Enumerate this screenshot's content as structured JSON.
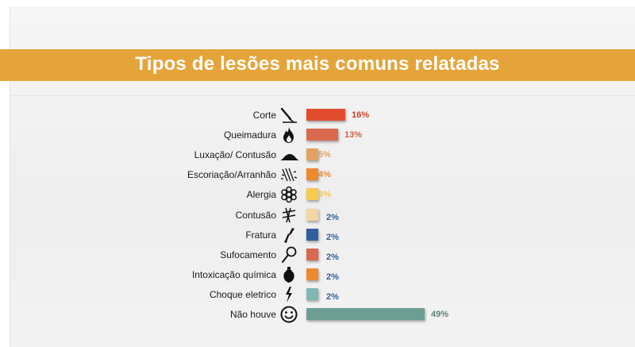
{
  "title": "Tipos de lesões mais comuns relatadas",
  "chart_data": {
    "type": "bar",
    "orientation": "horizontal",
    "title": "Tipos de lesões mais comuns relatadas",
    "categories": [
      "Corte",
      "Queimadura",
      "Luxação/ Contusão",
      "Escoriação/Arranhão",
      "Alergia",
      "Contusão",
      "Fratura",
      "Sufocamento",
      "Intoxicação química",
      "Choque eletrico",
      "Não houve"
    ],
    "values": [
      16,
      13,
      5,
      4,
      3,
      2,
      2,
      2,
      2,
      2,
      49
    ],
    "value_labels": [
      "16%",
      "13%",
      "5%",
      "4%",
      "3%",
      "2%",
      "2%",
      "2%",
      "2%",
      "2%",
      "49%"
    ],
    "unit": "%",
    "xlim": [
      0,
      49
    ],
    "colors": [
      "#e24c2f",
      "#d9694f",
      "#e0a263",
      "#ed8a2e",
      "#f6ca4e",
      "#f2d7a3",
      "#2f609b",
      "#d9694f",
      "#ed8a2e",
      "#7fb7b3",
      "#6e9e93"
    ],
    "label_colors": [
      "#d0402a",
      "#cf5e45",
      "#e0a263",
      "#e8892b",
      "#f3c84a",
      "#2f609b",
      "#2f609b",
      "#2f609b",
      "#2f609b",
      "#2f609b",
      "#5f7f78"
    ],
    "icons": [
      "knife-icon",
      "fire-icon",
      "bump-icon",
      "scratch-icon",
      "allergy-icon",
      "bruise-icon",
      "fracture-icon",
      "noose-icon",
      "poison-bottle-icon",
      "lightning-icon",
      "smiley-icon"
    ],
    "grid": false,
    "legend": "none"
  }
}
